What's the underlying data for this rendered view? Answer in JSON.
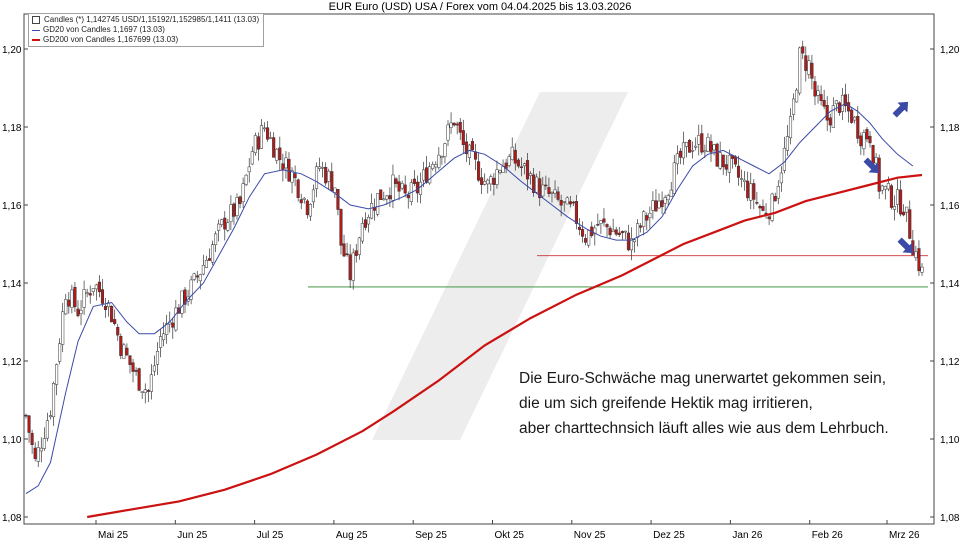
{
  "chart_data": {
    "type": "candlestick",
    "title": "EUR Euro (USD) USA / Forex vom 04.04.2025 bis 13.03.2026",
    "legend": [
      {
        "label": "Candles (*) 1,142745 USD/1,15192/1,152985/1,1411 (13.03)",
        "color": "#000000",
        "kind": "box"
      },
      {
        "label": "GD20 von Candles 1,1697 (13.03)",
        "color": "#3a4aa8",
        "kind": "line"
      },
      {
        "label": "GD200 von Candles 1,167699 (13.03)",
        "color": "#cc1111",
        "kind": "line"
      }
    ],
    "y_ticks": [
      "1,08",
      "1,10",
      "1,12",
      "1,14",
      "1,16",
      "1,18",
      "1,20"
    ],
    "ylim": [
      1.08,
      1.21
    ],
    "x_ticks": [
      "Mai 25",
      "Jun 25",
      "Jul 25",
      "Aug 25",
      "Sep 25",
      "Okt 25",
      "Nov 25",
      "Dez 25",
      "Jan 26",
      "Feb 26",
      "Mrz 26"
    ],
    "close_series": [
      [
        0,
        1.106
      ],
      [
        3,
        1.094
      ],
      [
        8,
        1.108
      ],
      [
        13,
        1.138
      ],
      [
        17,
        1.133
      ],
      [
        22,
        1.14
      ],
      [
        26,
        1.136
      ],
      [
        28,
        1.132
      ],
      [
        31,
        1.124
      ],
      [
        36,
        1.116
      ],
      [
        40,
        1.112
      ],
      [
        44,
        1.126
      ],
      [
        50,
        1.134
      ],
      [
        55,
        1.14
      ],
      [
        60,
        1.148
      ],
      [
        65,
        1.156
      ],
      [
        70,
        1.16
      ],
      [
        74,
        1.174
      ],
      [
        78,
        1.18
      ],
      [
        83,
        1.172
      ],
      [
        87,
        1.168
      ],
      [
        92,
        1.16
      ],
      [
        96,
        1.17
      ],
      [
        101,
        1.165
      ],
      [
        103,
        1.15
      ],
      [
        106,
        1.142
      ],
      [
        110,
        1.156
      ],
      [
        115,
        1.162
      ],
      [
        120,
        1.165
      ],
      [
        124,
        1.162
      ],
      [
        128,
        1.164
      ],
      [
        132,
        1.17
      ],
      [
        136,
        1.175
      ],
      [
        140,
        1.182
      ],
      [
        143,
        1.175
      ],
      [
        147,
        1.17
      ],
      [
        151,
        1.165
      ],
      [
        155,
        1.17
      ],
      [
        159,
        1.172
      ],
      [
        164,
        1.168
      ],
      [
        168,
        1.164
      ],
      [
        172,
        1.162
      ],
      [
        175,
        1.16
      ],
      [
        179,
        1.158
      ],
      [
        183,
        1.152
      ],
      [
        187,
        1.155
      ],
      [
        191,
        1.154
      ],
      [
        195,
        1.152
      ],
      [
        198,
        1.15
      ],
      [
        202,
        1.156
      ],
      [
        206,
        1.16
      ],
      [
        210,
        1.165
      ],
      [
        214,
        1.172
      ],
      [
        218,
        1.176
      ],
      [
        222,
        1.176
      ],
      [
        226,
        1.172
      ],
      [
        230,
        1.17
      ],
      [
        234,
        1.166
      ],
      [
        238,
        1.162
      ],
      [
        241,
        1.158
      ],
      [
        244,
        1.16
      ],
      [
        247,
        1.17
      ],
      [
        250,
        1.18
      ],
      [
        253,
        1.198
      ],
      [
        256,
        1.196
      ],
      [
        258,
        1.188
      ],
      [
        262,
        1.182
      ],
      [
        266,
        1.186
      ],
      [
        270,
        1.183
      ],
      [
        273,
        1.178
      ],
      [
        276,
        1.178
      ],
      [
        279,
        1.165
      ],
      [
        283,
        1.162
      ],
      [
        287,
        1.16
      ],
      [
        290,
        1.15
      ],
      [
        292,
        1.145
      ],
      [
        293,
        1.1427
      ]
    ],
    "gd20_series": [
      [
        0,
        1.086
      ],
      [
        4,
        1.088
      ],
      [
        8,
        1.094
      ],
      [
        13,
        1.112
      ],
      [
        17,
        1.125
      ],
      [
        22,
        1.134
      ],
      [
        28,
        1.135
      ],
      [
        33,
        1.13
      ],
      [
        37,
        1.127
      ],
      [
        42,
        1.127
      ],
      [
        47,
        1.13
      ],
      [
        52,
        1.135
      ],
      [
        58,
        1.14
      ],
      [
        63,
        1.147
      ],
      [
        68,
        1.154
      ],
      [
        73,
        1.162
      ],
      [
        78,
        1.168
      ],
      [
        84,
        1.169
      ],
      [
        90,
        1.168
      ],
      [
        95,
        1.166
      ],
      [
        101,
        1.163
      ],
      [
        106,
        1.16
      ],
      [
        112,
        1.159
      ],
      [
        117,
        1.16
      ],
      [
        123,
        1.162
      ],
      [
        128,
        1.164
      ],
      [
        134,
        1.168
      ],
      [
        140,
        1.172
      ],
      [
        145,
        1.174
      ],
      [
        150,
        1.173
      ],
      [
        156,
        1.17
      ],
      [
        162,
        1.166
      ],
      [
        167,
        1.163
      ],
      [
        172,
        1.16
      ],
      [
        177,
        1.157
      ],
      [
        183,
        1.154
      ],
      [
        188,
        1.152
      ],
      [
        193,
        1.151
      ],
      [
        198,
        1.151
      ],
      [
        203,
        1.153
      ],
      [
        208,
        1.157
      ],
      [
        213,
        1.164
      ],
      [
        218,
        1.17
      ],
      [
        223,
        1.173
      ],
      [
        228,
        1.174
      ],
      [
        233,
        1.172
      ],
      [
        238,
        1.17
      ],
      [
        243,
        1.168
      ],
      [
        248,
        1.171
      ],
      [
        253,
        1.176
      ],
      [
        258,
        1.18
      ],
      [
        263,
        1.184
      ],
      [
        268,
        1.186
      ],
      [
        272,
        1.184
      ],
      [
        276,
        1.181
      ],
      [
        280,
        1.177
      ],
      [
        285,
        1.173
      ],
      [
        290,
        1.17
      ]
    ],
    "gd200_series": [
      [
        20,
        1.08
      ],
      [
        35,
        1.082
      ],
      [
        50,
        1.084
      ],
      [
        65,
        1.087
      ],
      [
        80,
        1.091
      ],
      [
        95,
        1.096
      ],
      [
        110,
        1.102
      ],
      [
        120,
        1.107
      ],
      [
        135,
        1.115
      ],
      [
        150,
        1.124
      ],
      [
        165,
        1.131
      ],
      [
        180,
        1.137
      ],
      [
        195,
        1.142
      ],
      [
        205,
        1.146
      ],
      [
        215,
        1.15
      ],
      [
        225,
        1.153
      ],
      [
        235,
        1.156
      ],
      [
        245,
        1.158
      ],
      [
        255,
        1.161
      ],
      [
        265,
        1.163
      ],
      [
        275,
        1.165
      ],
      [
        285,
        1.167
      ],
      [
        293,
        1.1677
      ]
    ],
    "support_lines": [
      1.147,
      1.139
    ],
    "annotation": [
      "Die Euro-Schwäche mag unerwartet gekommen sein,",
      "die um sich greifende Hektik mag irritieren,",
      "aber charttechnsich läuft alles wie aus dem Lehrbuch."
    ],
    "colors": {
      "up": "#ffffff",
      "down": "#b31b1b",
      "gd20": "#3a4aa8",
      "gd200": "#cc1111",
      "support_red": "#cc3333",
      "support_green": "#2a8a2a",
      "arrow": "#3b4aa6",
      "watermark": "#e6e6e6"
    }
  }
}
